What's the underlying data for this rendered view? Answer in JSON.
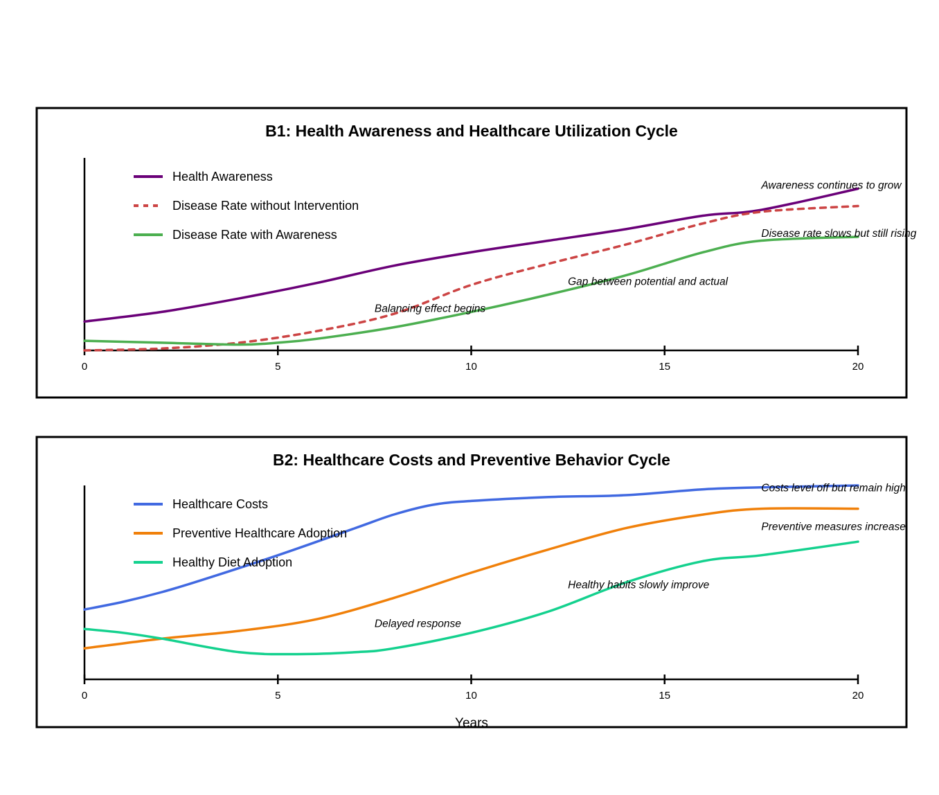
{
  "x_axis_title": "Years",
  "chart_data": [
    {
      "type": "line",
      "title": "B1: Health Awareness and Healthcare Utilization Cycle",
      "xlabel": "",
      "ylabel": "",
      "xlim": [
        0,
        20
      ],
      "ylim": [
        0,
        100
      ],
      "x_ticks": [
        0,
        5,
        10,
        15,
        20
      ],
      "grid": false,
      "legend_position": "top-left",
      "series": [
        {
          "name": "Health Awareness",
          "color": "#6a0078",
          "style": "solid",
          "x": [
            0,
            2,
            4,
            6,
            8,
            10,
            12,
            14,
            16,
            17.5,
            20
          ],
          "y": [
            15,
            20,
            27,
            35,
            44,
            51,
            57,
            63,
            70,
            73,
            84
          ]
        },
        {
          "name": "Disease Rate without Intervention",
          "color": "#cc4444",
          "style": "dashed",
          "x": [
            0,
            2,
            4,
            6,
            8,
            10,
            12,
            14,
            16,
            17.5,
            20
          ],
          "y": [
            0,
            1,
            4,
            10,
            19,
            34,
            45,
            55,
            66,
            72,
            75
          ]
        },
        {
          "name": "Disease Rate with Awareness",
          "color": "#4caf50",
          "style": "solid",
          "x": [
            0,
            2,
            4,
            5,
            6,
            8,
            10,
            12,
            14,
            16,
            17.5,
            20
          ],
          "y": [
            5,
            4,
            3,
            4,
            6,
            12,
            20,
            29,
            39,
            51,
            57,
            59
          ]
        }
      ],
      "annotations": [
        {
          "text": "Awareness continues to grow",
          "x": 17.5,
          "y": 84
        },
        {
          "text": "Disease rate slows but still rising",
          "x": 17.5,
          "y": 59
        },
        {
          "text": "Gap between potential and actual",
          "x": 12.5,
          "y": 34
        },
        {
          "text": "Balancing effect begins",
          "x": 7.5,
          "y": 20
        }
      ]
    },
    {
      "type": "line",
      "title": "B2: Healthcare Costs and Preventive Behavior Cycle",
      "xlabel": "Years",
      "ylabel": "",
      "xlim": [
        0,
        20
      ],
      "ylim": [
        0,
        100
      ],
      "x_ticks": [
        0,
        5,
        10,
        15,
        20
      ],
      "grid": false,
      "legend_position": "top-left",
      "series": [
        {
          "name": "Healthcare Costs",
          "color": "#4169e1",
          "style": "solid",
          "x": [
            0,
            1,
            2,
            3,
            5,
            7,
            8,
            9,
            10,
            12,
            14,
            16,
            17.5,
            20
          ],
          "y": [
            36,
            40,
            45,
            51,
            64,
            78,
            85,
            90,
            92,
            94,
            95,
            98,
            99,
            100
          ]
        },
        {
          "name": "Preventive Healthcare Adoption",
          "color": "#f0800a",
          "style": "solid",
          "x": [
            0,
            2,
            4,
            6,
            8,
            10,
            12,
            14,
            16,
            17.5,
            20
          ],
          "y": [
            16,
            21,
            25,
            31,
            42,
            55,
            67,
            78,
            85,
            88,
            88
          ]
        },
        {
          "name": "Healthy Diet Adoption",
          "color": "#14d18e",
          "style": "solid",
          "x": [
            0,
            1,
            2,
            4,
            5.5,
            7,
            8,
            10,
            12,
            14,
            16,
            17.5,
            20
          ],
          "y": [
            26,
            24,
            21,
            14,
            13,
            14,
            16,
            24,
            35,
            50,
            61,
            64,
            71
          ]
        }
      ],
      "annotations": [
        {
          "text": "Costs level off but remain high",
          "x": 17.5,
          "y": 97
        },
        {
          "text": "Preventive measures increase",
          "x": 17.5,
          "y": 77
        },
        {
          "text": "Healthy habits slowly improve",
          "x": 12.5,
          "y": 47
        },
        {
          "text": "Delayed response",
          "x": 7.5,
          "y": 27
        }
      ]
    }
  ]
}
